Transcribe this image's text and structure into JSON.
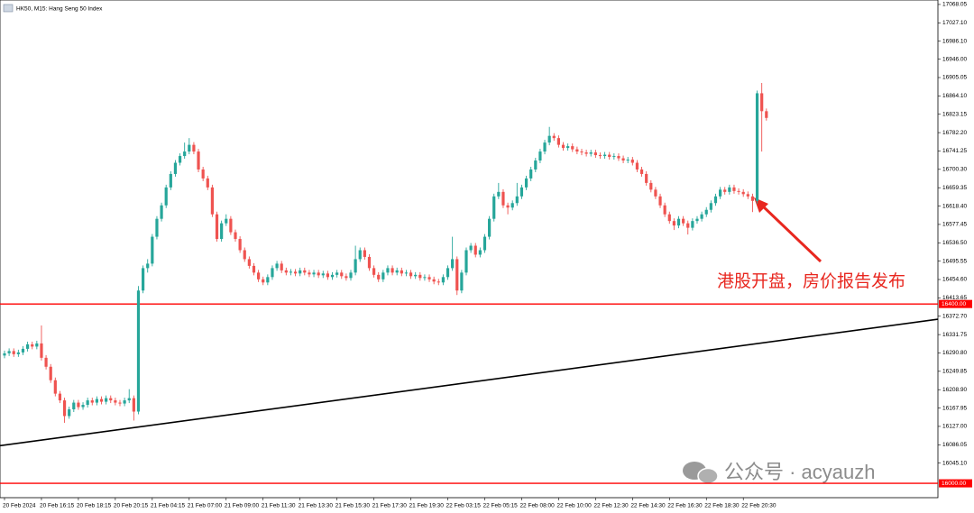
{
  "chart_data": {
    "type": "candlestick",
    "title": "HK50, M15: Hang Seng 50 Index",
    "annotation": "港股开盘，房价报告发布",
    "watermark": "公众号 · acyauzh",
    "up_color": "#26a69a",
    "down_color": "#ef5350",
    "categories": [
      "20 Feb 2024",
      null,
      null,
      null,
      null,
      null,
      null,
      null,
      "20 Feb 16:15",
      null,
      null,
      null,
      null,
      null,
      null,
      null,
      "20 Feb 18:15",
      null,
      null,
      null,
      null,
      null,
      null,
      null,
      "20 Feb 20:15",
      null,
      null,
      null,
      null,
      null,
      null,
      null,
      "21 Feb 04:15",
      null,
      null,
      null,
      null,
      null,
      null,
      null,
      "21 Feb 07:00",
      null,
      null,
      null,
      null,
      null,
      null,
      null,
      "21 Feb 09:00",
      null,
      null,
      null,
      null,
      null,
      null,
      null,
      "21 Feb 11:30",
      null,
      null,
      null,
      null,
      null,
      null,
      null,
      "21 Feb 13:30",
      null,
      null,
      null,
      null,
      null,
      null,
      null,
      "21 Feb 15:30",
      null,
      null,
      null,
      null,
      null,
      null,
      null,
      "21 Feb 17:30",
      null,
      null,
      null,
      null,
      null,
      null,
      null,
      "21 Feb 19:30",
      null,
      null,
      null,
      null,
      null,
      null,
      null,
      "22 Feb 03:15",
      null,
      null,
      null,
      null,
      null,
      null,
      null,
      "22 Feb 05:15",
      null,
      null,
      null,
      null,
      null,
      null,
      null,
      "22 Feb 08:00",
      null,
      null,
      null,
      null,
      null,
      null,
      null,
      "22 Feb 10:00",
      null,
      null,
      null,
      null,
      null,
      null,
      null,
      "22 Feb 12:30",
      null,
      null,
      null,
      null,
      null,
      null,
      null,
      "22 Feb 14:30",
      null,
      null,
      null,
      null,
      null,
      null,
      null,
      "22 Feb 16:30",
      null,
      null,
      null,
      null,
      null,
      null,
      null,
      "22 Feb 18:30",
      null,
      null,
      null,
      null,
      null,
      null,
      null,
      "22 Feb 20:30",
      null,
      null,
      null,
      null,
      null
    ],
    "open": [
      16285,
      16290,
      16295,
      16288,
      16292,
      16300,
      16310,
      16305,
      16312,
      16280,
      16260,
      16230,
      16200,
      16185,
      16150,
      16165,
      16180,
      16170,
      16175,
      16185,
      16180,
      16188,
      16182,
      16190,
      16185,
      16180,
      16178,
      16185,
      16190,
      16160,
      16430,
      16480,
      16490,
      16550,
      16590,
      16620,
      16660,
      16690,
      16715,
      16730,
      16740,
      16755,
      16740,
      16700,
      16680,
      16660,
      16600,
      16545,
      16580,
      16590,
      16560,
      16545,
      16520,
      16500,
      16485,
      16470,
      16455,
      16448,
      16460,
      16480,
      16490,
      16475,
      16470,
      16472,
      16468,
      16475,
      16470,
      16466,
      16470,
      16464,
      16468,
      16460,
      16465,
      16470,
      16462,
      16458,
      16470,
      16500,
      16520,
      16505,
      16480,
      16465,
      16455,
      16470,
      16480,
      16470,
      16475,
      16468,
      16470,
      16462,
      16465,
      16458,
      16460,
      16455,
      16450,
      16448,
      16460,
      16480,
      16500,
      16430,
      16470,
      16520,
      16530,
      16510,
      16520,
      16550,
      16590,
      16640,
      16650,
      16620,
      16615,
      16625,
      16640,
      16660,
      16680,
      16700,
      16720,
      16740,
      16760,
      16775,
      16770,
      16755,
      16748,
      16752,
      16745,
      16740,
      16738,
      16735,
      16738,
      16732,
      16730,
      16733,
      16728,
      16730,
      16725,
      16720,
      16722,
      16715,
      16700,
      16690,
      16670,
      16655,
      16640,
      16620,
      16600,
      16585,
      16575,
      16590,
      16580,
      16570,
      16585,
      16590,
      16600,
      16610,
      16625,
      16640,
      16655,
      16650,
      16660,
      16652,
      16650,
      16645,
      16640,
      16630,
      16870,
      16830
    ],
    "high": [
      16296,
      16301,
      16301,
      16298,
      16306,
      16316,
      16316,
      16318,
      16352,
      16286,
      16266,
      16236,
      16206,
      16191,
      16171,
      16186,
      16186,
      16181,
      16191,
      16191,
      16194,
      16194,
      16196,
      16196,
      16191,
      16186,
      16191,
      16210,
      16196,
      16440,
      16486,
      16500,
      16556,
      16596,
      16626,
      16666,
      16696,
      16721,
      16736,
      16760,
      16770,
      16761,
      16746,
      16706,
      16686,
      16666,
      16606,
      16586,
      16600,
      16596,
      16566,
      16551,
      16526,
      16506,
      16491,
      16476,
      16461,
      16466,
      16486,
      16496,
      16496,
      16481,
      16478,
      16478,
      16481,
      16481,
      16476,
      16476,
      16476,
      16474,
      16474,
      16471,
      16476,
      16476,
      16468,
      16476,
      16530,
      16526,
      16526,
      16511,
      16486,
      16471,
      16476,
      16486,
      16486,
      16481,
      16481,
      16476,
      16476,
      16471,
      16471,
      16466,
      16466,
      16461,
      16456,
      16466,
      16486,
      16550,
      16506,
      16476,
      16526,
      16536,
      16536,
      16526,
      16556,
      16596,
      16646,
      16670,
      16656,
      16626,
      16631,
      16670,
      16666,
      16686,
      16706,
      16726,
      16746,
      16766,
      16795,
      16781,
      16776,
      16761,
      16758,
      16758,
      16751,
      16746,
      16744,
      16744,
      16744,
      16738,
      16739,
      16739,
      16736,
      16736,
      16731,
      16728,
      16728,
      16721,
      16706,
      16696,
      16676,
      16661,
      16646,
      16626,
      16606,
      16591,
      16596,
      16596,
      16586,
      16591,
      16596,
      16606,
      16616,
      16631,
      16646,
      16661,
      16661,
      16666,
      16666,
      16658,
      16656,
      16651,
      16646,
      16876,
      16893,
      16836
    ],
    "low": [
      16279,
      16284,
      16282,
      16282,
      16286,
      16294,
      16299,
      16299,
      16274,
      16254,
      16224,
      16194,
      16179,
      16135,
      16144,
      16159,
      16164,
      16164,
      16169,
      16174,
      16174,
      16176,
      16176,
      16179,
      16174,
      16172,
      16172,
      16179,
      16140,
      16154,
      16424,
      16470,
      16484,
      16544,
      16584,
      16614,
      16654,
      16684,
      16709,
      16724,
      16734,
      16734,
      16694,
      16674,
      16654,
      16594,
      16539,
      16539,
      16574,
      16554,
      16539,
      16514,
      16494,
      16479,
      16464,
      16449,
      16442,
      16442,
      16454,
      16474,
      16469,
      16464,
      16464,
      16462,
      16462,
      16464,
      16460,
      16460,
      16458,
      16458,
      16454,
      16454,
      16459,
      16456,
      16452,
      16452,
      16464,
      16494,
      16499,
      16474,
      16459,
      16449,
      16449,
      16464,
      16464,
      16464,
      16462,
      16462,
      16456,
      16456,
      16452,
      16452,
      16449,
      16444,
      16442,
      16442,
      16454,
      16474,
      16420,
      16424,
      16464,
      16514,
      16504,
      16504,
      16514,
      16544,
      16584,
      16634,
      16614,
      16600,
      16609,
      16619,
      16634,
      16654,
      16674,
      16694,
      16714,
      16734,
      16754,
      16764,
      16749,
      16742,
      16742,
      16739,
      16734,
      16732,
      16729,
      16729,
      16726,
      16724,
      16724,
      16722,
      16722,
      16719,
      16714,
      16714,
      16709,
      16694,
      16684,
      16664,
      16649,
      16634,
      16614,
      16594,
      16579,
      16565,
      16569,
      16574,
      16555,
      16564,
      16579,
      16584,
      16594,
      16604,
      16619,
      16634,
      16644,
      16644,
      16646,
      16644,
      16639,
      16634,
      16605,
      16624,
      16740,
      16809
    ],
    "close": [
      16290,
      16295,
      16288,
      16292,
      16300,
      16310,
      16305,
      16312,
      16280,
      16260,
      16230,
      16200,
      16185,
      16150,
      16165,
      16180,
      16170,
      16175,
      16185,
      16180,
      16188,
      16182,
      16190,
      16185,
      16180,
      16178,
      16185,
      16190,
      16160,
      16430,
      16480,
      16490,
      16550,
      16590,
      16620,
      16660,
      16690,
      16715,
      16730,
      16740,
      16755,
      16740,
      16700,
      16680,
      16660,
      16600,
      16545,
      16580,
      16590,
      16560,
      16545,
      16520,
      16500,
      16485,
      16470,
      16455,
      16448,
      16460,
      16480,
      16490,
      16475,
      16470,
      16472,
      16468,
      16475,
      16470,
      16466,
      16470,
      16464,
      16468,
      16460,
      16465,
      16470,
      16462,
      16458,
      16470,
      16500,
      16520,
      16505,
      16480,
      16465,
      16455,
      16470,
      16480,
      16470,
      16475,
      16468,
      16470,
      16462,
      16465,
      16458,
      16460,
      16455,
      16450,
      16448,
      16460,
      16480,
      16500,
      16430,
      16470,
      16520,
      16530,
      16510,
      16520,
      16550,
      16590,
      16640,
      16650,
      16620,
      16615,
      16625,
      16640,
      16660,
      16680,
      16700,
      16720,
      16740,
      16760,
      16775,
      16770,
      16755,
      16748,
      16752,
      16745,
      16740,
      16738,
      16735,
      16738,
      16732,
      16730,
      16733,
      16728,
      16730,
      16725,
      16720,
      16722,
      16715,
      16700,
      16690,
      16670,
      16655,
      16640,
      16620,
      16600,
      16585,
      16575,
      16590,
      16580,
      16570,
      16585,
      16590,
      16600,
      16610,
      16625,
      16640,
      16655,
      16650,
      16660,
      16652,
      16650,
      16645,
      16640,
      16630,
      16870,
      16830,
      16815
    ],
    "ylim": [
      15968,
      17078
    ],
    "yticks": [
      17068.05,
      {
        "value": 17027.1,
        "label": "17027.10"
      },
      {
        "value": 16986.1,
        "label": "16986.10"
      },
      {
        "value": 16946,
        "label": "16946.00"
      },
      16905.05,
      {
        "value": 16864.1,
        "label": "16864.10"
      },
      16823.15,
      {
        "value": 16782.2,
        "label": "16782.20"
      },
      16741.25,
      {
        "value": 16700.3,
        "label": "16700.30"
      },
      16659.35,
      {
        "value": 16618.4,
        "label": "16618.40"
      },
      16577.45,
      {
        "value": 16536.5,
        "label": "16536.50"
      },
      16495.55,
      {
        "value": 16454.6,
        "label": "16454.60"
      },
      16413.65,
      {
        "value": 16372.7,
        "label": "16372.70"
      },
      16331.75,
      {
        "value": 16290.8,
        "label": "16290.80"
      },
      16249.85,
      {
        "value": 16208.9,
        "label": "16208.90"
      },
      16167.95,
      {
        "value": 16127,
        "label": "16127.00"
      },
      16086.05,
      {
        "value": 16045.1,
        "label": "16045.10"
      }
    ],
    "hlines": [
      {
        "value": 16400,
        "label": "16400.00"
      },
      {
        "value": 16000,
        "label": "16000.00"
      }
    ],
    "hline_color": "#ff0000",
    "trendline": [
      16084,
      16366
    ],
    "trendline_color": "#000000"
  }
}
